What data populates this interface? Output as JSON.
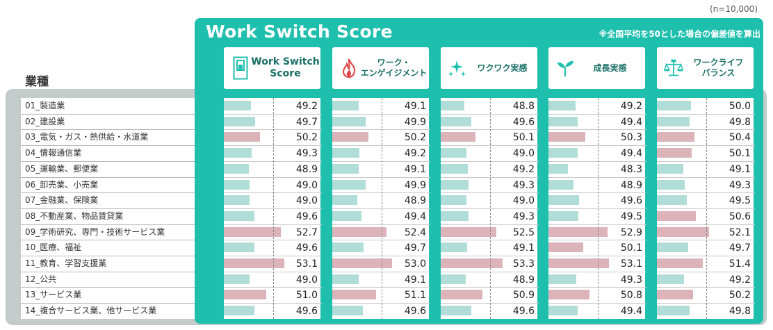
{
  "sample_note": "(n=10,000)",
  "title": "Work Switch Score",
  "note": "※全国平均を50とした場合の偏差値を算出",
  "industry_header": "業種",
  "colors": {
    "teal": "#1fbfae",
    "bar_low": "#b1ddd8",
    "bar_high": "#dbb3b9"
  },
  "chart_data": {
    "type": "bar",
    "orientation": "horizontal",
    "baseline": 50,
    "categories": [
      "01_製造業",
      "02_建設業",
      "03_電気・ガス・熱供給・水道業",
      "04_情報通信業",
      "05_運輸業、郵便業",
      "06_卸売業、小売業",
      "07_金融業、保険業",
      "08_不動産業、物品賃貸業",
      "09_学術研究、専門・技術サービス業",
      "10_医療、福祉",
      "11_教育、学習支援業",
      "12_公共",
      "13_サービス業",
      "14_複合サービス業、他サービス業"
    ],
    "series": [
      {
        "name": "Work Switch\nScore",
        "icon": "switch-icon",
        "values": [
          "49.2",
          "49.7",
          "50.2",
          "49.3",
          "48.9",
          "49.0",
          "49.0",
          "49.6",
          "52.7",
          "49.6",
          "53.1",
          "49.0",
          "51.0",
          "49.6"
        ]
      },
      {
        "name": "ワーク・\nエンゲイジメント",
        "icon": "flame-icon",
        "values": [
          "49.1",
          "49.9",
          "50.2",
          "49.2",
          "49.1",
          "49.9",
          "48.9",
          "49.4",
          "52.4",
          "49.7",
          "53.0",
          "49.1",
          "51.1",
          "49.6"
        ]
      },
      {
        "name": "ワクワク実感",
        "icon": "sparkle-icon",
        "values": [
          "48.8",
          "49.6",
          "50.1",
          "49.0",
          "49.2",
          "49.3",
          "49.0",
          "49.3",
          "52.5",
          "49.1",
          "53.3",
          "48.9",
          "50.9",
          "49.6"
        ]
      },
      {
        "name": "成長実感",
        "icon": "sprout-icon",
        "values": [
          "49.2",
          "49.4",
          "50.3",
          "49.4",
          "48.3",
          "48.9",
          "49.6",
          "49.5",
          "52.9",
          "50.1",
          "53.1",
          "49.3",
          "50.8",
          "49.4"
        ]
      },
      {
        "name": "ワークライフ\nバランス",
        "icon": "balance-icon",
        "values": [
          "50.0",
          "49.8",
          "50.4",
          "50.1",
          "49.1",
          "49.3",
          "49.5",
          "50.6",
          "52.1",
          "49.7",
          "51.4",
          "49.2",
          "50.2",
          "49.8"
        ]
      }
    ]
  }
}
